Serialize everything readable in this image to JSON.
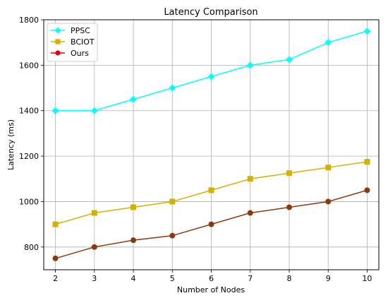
{
  "chart_data": {
    "type": "line",
    "title": "Latency Comparison",
    "xlabel": "Number of Nodes",
    "ylabel": "Latency (ms)",
    "x": [
      2,
      3,
      4,
      5,
      6,
      7,
      8,
      9,
      10
    ],
    "xlim": [
      1.7,
      10.3
    ],
    "ylim": [
      700,
      1800
    ],
    "xticks": [
      2,
      3,
      4,
      5,
      6,
      7,
      8,
      9,
      10
    ],
    "yticks": [
      800,
      1000,
      1200,
      1400,
      1600,
      1800
    ],
    "grid": true,
    "legend_position": "top-left",
    "series": [
      {
        "name": "PPSC",
        "color": "#00ffff",
        "marker": "diamond",
        "values": [
          1400,
          1400,
          1450,
          1500,
          1550,
          1600,
          1625,
          1700,
          1750
        ]
      },
      {
        "name": "BCIOT",
        "color": "#d4b000",
        "marker": "square",
        "values": [
          900,
          950,
          975,
          1000,
          1050,
          1100,
          1125,
          1150,
          1175
        ]
      },
      {
        "name": "Ours",
        "color": "#8b3a0f",
        "marker": "circle",
        "legend_color": "#e8000b",
        "values": [
          750,
          800,
          830,
          850,
          900,
          950,
          975,
          1000,
          1050
        ]
      }
    ]
  }
}
